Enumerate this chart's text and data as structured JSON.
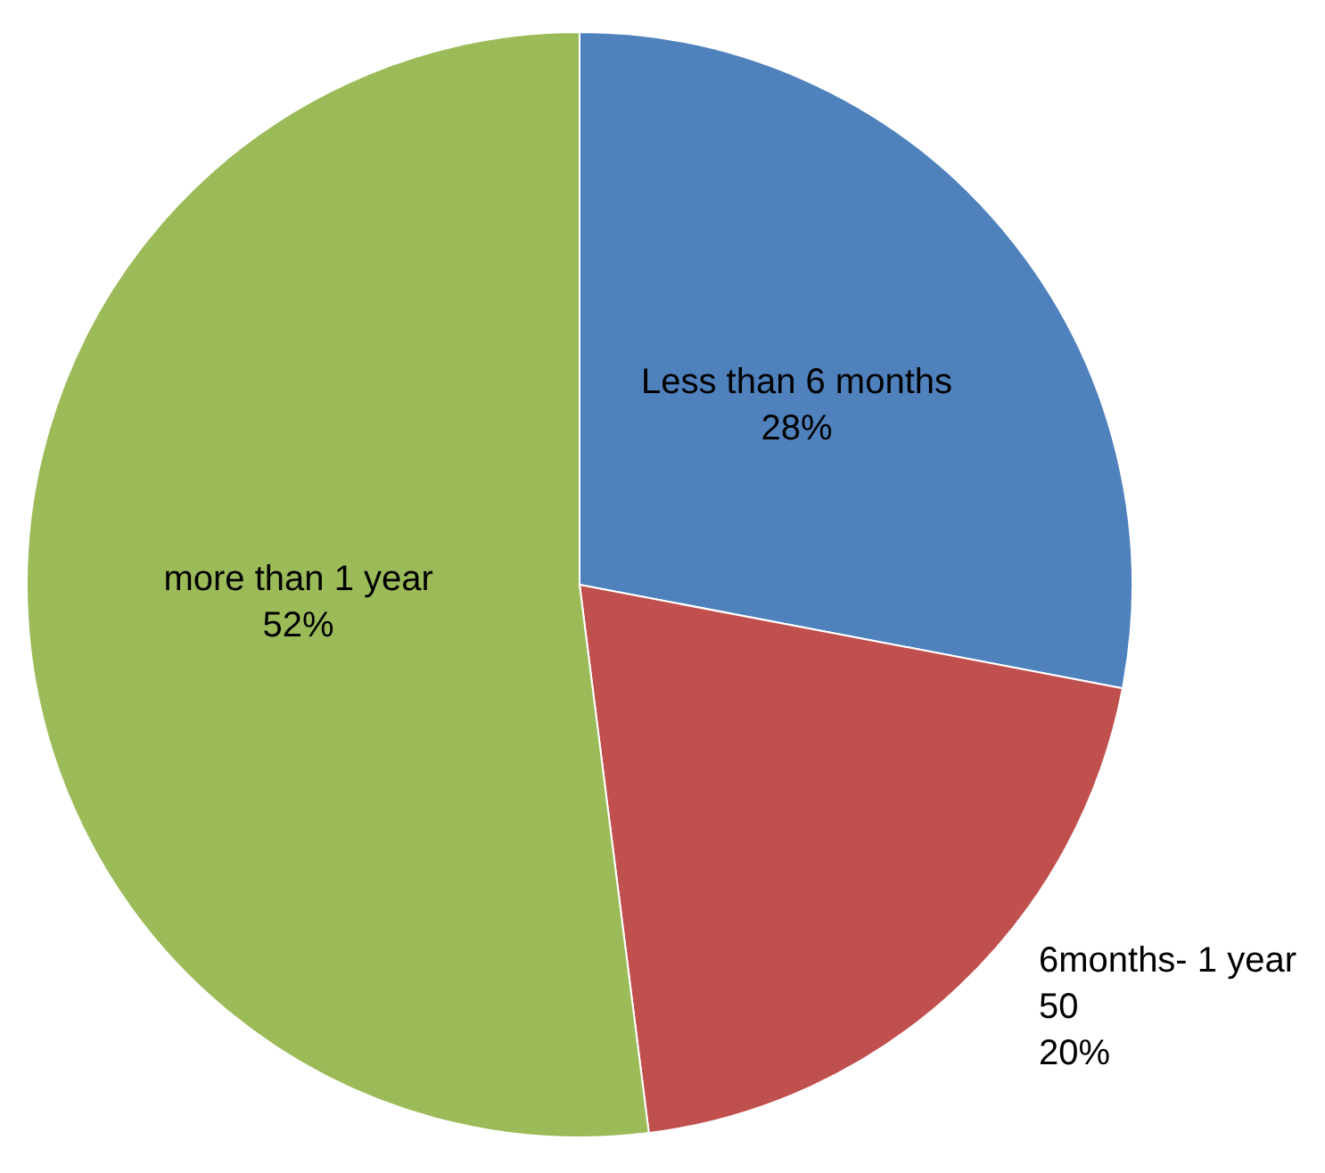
{
  "chart_data": {
    "type": "pie",
    "categories": [
      "Less than 6 months",
      "6months- 1 year",
      "more than 1 year"
    ],
    "values": [
      28,
      20,
      52
    ],
    "colors": [
      "#4f81bd",
      "#c0504d",
      "#9bbb59"
    ],
    "value_labels": [
      "28%",
      "50\n20%",
      "52%"
    ],
    "legend": false
  }
}
